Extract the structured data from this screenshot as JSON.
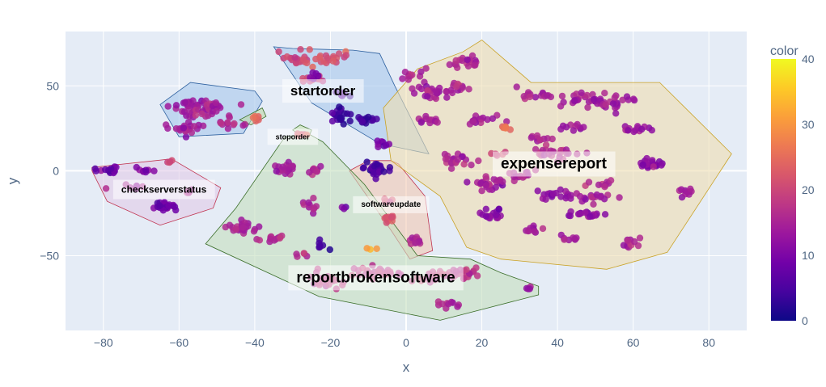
{
  "chart_data": {
    "type": "scatter",
    "xlabel": "x",
    "ylabel": "y",
    "xlim": [
      -90,
      90
    ],
    "ylim": [
      -94,
      82
    ],
    "x_ticks": [
      -80,
      -60,
      -40,
      -20,
      0,
      20,
      40,
      60,
      80
    ],
    "y_ticks": [
      -50,
      0,
      50
    ],
    "x_tick_labels": [
      "−80",
      "−60",
      "−40",
      "−20",
      "0",
      "20",
      "40",
      "60",
      "80"
    ],
    "y_tick_labels": [
      "−50",
      "0",
      "50"
    ],
    "grid": true,
    "colorbar": {
      "title": "color",
      "min": 0,
      "max": 40,
      "ticks": [
        0,
        10,
        20,
        30,
        40
      ],
      "scale": [
        "#0d0887",
        "#46039f",
        "#7201a8",
        "#9c179e",
        "#bd3786",
        "#d8576b",
        "#ed7953",
        "#fb9f3a",
        "#fdca26",
        "#f0f921"
      ]
    },
    "clusters": [
      {
        "name": "startorder",
        "label_size": 17,
        "label_pos": [
          -22,
          47
        ],
        "fill": "#a6c8ec",
        "stroke": "#2c5f9e",
        "hull": [
          [
            -35,
            73
          ],
          [
            -30,
            72
          ],
          [
            -14,
            71
          ],
          [
            -7,
            69
          ],
          [
            -3,
            50
          ],
          [
            6,
            10
          ],
          [
            -7,
            16
          ],
          [
            -25,
            40
          ]
        ],
        "clusters": [
          {
            "cx": -28,
            "cy": 66,
            "sx": 5,
            "sy": 4,
            "n": 24,
            "c": 20
          },
          {
            "cx": -20,
            "cy": 66,
            "sx": 4,
            "sy": 4,
            "n": 16,
            "c": 22
          },
          {
            "cx": -25,
            "cy": 54,
            "sx": 3,
            "sy": 2,
            "n": 10,
            "c": 19
          },
          {
            "cx": -18,
            "cy": 32,
            "sx": 3,
            "sy": 4,
            "n": 22,
            "c": 4
          },
          {
            "cx": -11,
            "cy": 30,
            "sx": 3,
            "sy": 2,
            "n": 14,
            "c": 4
          },
          {
            "cx": -17,
            "cy": 45,
            "sx": 2,
            "sy": 2,
            "n": 6,
            "c": 5
          },
          {
            "cx": -6,
            "cy": 16,
            "sx": 3,
            "sy": 2,
            "n": 8,
            "c": 10
          },
          {
            "cx": -24,
            "cy": 56,
            "sx": 2,
            "sy": 2,
            "n": 5,
            "c": 10
          }
        ]
      },
      {
        "name": "",
        "label_size": 0,
        "label_pos": [
          0,
          0
        ],
        "fill": "#a6c8ec",
        "stroke": "#2c5f9e",
        "hull": [
          [
            -65,
            39
          ],
          [
            -57,
            52
          ],
          [
            -40,
            47
          ],
          [
            -38,
            41
          ],
          [
            -43,
            22
          ],
          [
            -60,
            20
          ]
        ],
        "clusters": [
          {
            "cx": -57,
            "cy": 37,
            "sx": 4,
            "sy": 4,
            "n": 30,
            "c": 14
          },
          {
            "cx": -51,
            "cy": 37,
            "sx": 4,
            "sy": 4,
            "n": 28,
            "c": 15
          },
          {
            "cx": -58,
            "cy": 25,
            "sx": 4,
            "sy": 2,
            "n": 20,
            "c": 14
          },
          {
            "cx": -46,
            "cy": 28,
            "sx": 3,
            "sy": 2,
            "n": 10,
            "c": 16
          }
        ]
      },
      {
        "name": "",
        "label_size": 0,
        "label_pos": [
          0,
          0
        ],
        "fill": "#bcd9a8",
        "stroke": "#3b6e2a",
        "hull": [
          [
            -44,
            30
          ],
          [
            -38,
            37
          ],
          [
            -37,
            32
          ],
          [
            -41,
            27
          ]
        ],
        "clusters": [
          {
            "cx": -40,
            "cy": 31,
            "sx": 1.5,
            "sy": 1.5,
            "n": 6,
            "c": 24
          }
        ]
      },
      {
        "name": "stoporder",
        "label_size": 9,
        "label_pos": [
          -30,
          20
        ],
        "fill": "#c5e3ad",
        "stroke": "#3b6e2a",
        "hull": [
          [
            -30,
            24
          ],
          [
            -28,
            27
          ],
          [
            -25,
            24
          ],
          [
            -26,
            18
          ]
        ],
        "clusters": [
          {
            "cx": -28,
            "cy": 22,
            "sx": 1.5,
            "sy": 1.5,
            "n": 6,
            "c": 22
          }
        ]
      },
      {
        "name": "checkserverstatus",
        "label_size": 12,
        "label_pos": [
          -64,
          -11
        ],
        "fill": "#e1cbe8",
        "stroke": "#c0334f",
        "hull": [
          [
            -83,
            0
          ],
          [
            -83,
            2
          ],
          [
            -62,
            7
          ],
          [
            -49,
            -10
          ],
          [
            -51,
            -22
          ],
          [
            -65,
            -32
          ],
          [
            -79,
            -18
          ]
        ],
        "clusters": [
          {
            "cx": -78,
            "cy": 0,
            "sx": 3,
            "sy": 2,
            "n": 18,
            "c": 8
          },
          {
            "cx": -69,
            "cy": 0,
            "sx": 2,
            "sy": 1.5,
            "n": 8,
            "c": 10
          },
          {
            "cx": -64,
            "cy": -21,
            "sx": 3,
            "sy": 2,
            "n": 24,
            "c": 9
          },
          {
            "cx": -62,
            "cy": 5,
            "sx": 1.5,
            "sy": 1,
            "n": 4,
            "c": 20
          },
          {
            "cx": -72,
            "cy": -10,
            "sx": 3,
            "sy": 2,
            "n": 8,
            "c": 14
          },
          {
            "cx": -58,
            "cy": -12,
            "sx": 2,
            "sy": 2,
            "n": 5,
            "c": 16
          }
        ]
      },
      {
        "name": "softwareupdate",
        "label_size": 10,
        "label_pos": [
          -4,
          -20
        ],
        "fill": "#f0c8b3",
        "stroke": "#c0334f",
        "hull": [
          [
            -15,
            0
          ],
          [
            -10,
            6
          ],
          [
            -4,
            6
          ],
          [
            -2,
            4
          ],
          [
            5,
            -15
          ],
          [
            7,
            -47
          ],
          [
            1,
            -52
          ],
          [
            -4,
            -35
          ]
        ],
        "clusters": [
          {
            "cx": -8,
            "cy": 1,
            "sx": 3,
            "sy": 3,
            "n": 30,
            "c": 5
          },
          {
            "cx": -4,
            "cy": -28,
            "sx": 2,
            "sy": 2,
            "n": 10,
            "c": 22
          },
          {
            "cx": 2,
            "cy": -41,
            "sx": 2,
            "sy": 2,
            "n": 12,
            "c": 16
          },
          {
            "cx": -5,
            "cy": -18,
            "sx": 2,
            "sy": 2,
            "n": 6,
            "c": 20
          }
        ]
      },
      {
        "name": "reportbrokensoftware",
        "label_size": 19,
        "label_pos": [
          -8,
          -63
        ],
        "fill": "#c5dfbe",
        "stroke": "#3b6e2a",
        "hull": [
          [
            -32,
            20
          ],
          [
            -26,
            22
          ],
          [
            -22,
            17
          ],
          [
            -11,
            -8
          ],
          [
            3,
            -50
          ],
          [
            17,
            -52
          ],
          [
            25,
            -60
          ],
          [
            35,
            -68
          ],
          [
            35,
            -73
          ],
          [
            9,
            -88
          ],
          [
            -23,
            -74
          ],
          [
            -53,
            -43
          ],
          [
            -45,
            -22
          ]
        ],
        "clusters": [
          {
            "cx": -32,
            "cy": 1,
            "sx": 3,
            "sy": 3,
            "n": 22,
            "c": 14
          },
          {
            "cx": -24,
            "cy": 0,
            "sx": 2,
            "sy": 2,
            "n": 10,
            "c": 16
          },
          {
            "cx": -43,
            "cy": -33,
            "sx": 3,
            "sy": 3,
            "n": 24,
            "c": 15
          },
          {
            "cx": -35,
            "cy": -40,
            "sx": 3,
            "sy": 2,
            "n": 12,
            "c": 16
          },
          {
            "cx": -25,
            "cy": -21,
            "sx": 2,
            "sy": 3,
            "n": 10,
            "c": 15
          },
          {
            "cx": -22,
            "cy": -44,
            "sx": 1.5,
            "sy": 2,
            "n": 7,
            "c": 3
          },
          {
            "cx": -28,
            "cy": -50,
            "sx": 2,
            "sy": 2,
            "n": 5,
            "c": 17
          },
          {
            "cx": -20,
            "cy": -64,
            "sx": 4,
            "sy": 4,
            "n": 20,
            "c": 18
          },
          {
            "cx": -8,
            "cy": -60,
            "sx": 5,
            "sy": 3,
            "n": 28,
            "c": 18
          },
          {
            "cx": 8,
            "cy": -62,
            "sx": 5,
            "sy": 3,
            "n": 24,
            "c": 18
          },
          {
            "cx": 16,
            "cy": -60,
            "sx": 4,
            "sy": 3,
            "n": 14,
            "c": 17
          },
          {
            "cx": 10,
            "cy": -79,
            "sx": 3,
            "sy": 2,
            "n": 10,
            "c": 15
          },
          {
            "cx": 33,
            "cy": -69,
            "sx": 1.5,
            "sy": 1,
            "n": 4,
            "c": 13
          },
          {
            "cx": -17,
            "cy": -22,
            "sx": 1.5,
            "sy": 1.5,
            "n": 3,
            "c": 10
          },
          {
            "cx": -8,
            "cy": -45,
            "sx": 1.5,
            "sy": 1,
            "n": 3,
            "c": 32
          }
        ]
      },
      {
        "name": "expensereport",
        "label_size": 19,
        "label_pos": [
          39,
          4
        ],
        "fill": "#eedeb0",
        "stroke": "#c9a227",
        "hull": [
          [
            3,
            60
          ],
          [
            15,
            70
          ],
          [
            20,
            77
          ],
          [
            33,
            52
          ],
          [
            67,
            52
          ],
          [
            86,
            10
          ],
          [
            69,
            -48
          ],
          [
            53,
            -58
          ],
          [
            25,
            -52
          ],
          [
            16,
            -45
          ],
          [
            9,
            -15
          ],
          [
            -4,
            6
          ],
          [
            -6,
            37
          ]
        ],
        "clusters": [
          {
            "cx": 2,
            "cy": 57,
            "sx": 3,
            "sy": 3,
            "n": 12,
            "c": 15
          },
          {
            "cx": 7,
            "cy": 46,
            "sx": 4,
            "sy": 4,
            "n": 24,
            "c": 14
          },
          {
            "cx": 6,
            "cy": 30,
            "sx": 3,
            "sy": 2,
            "n": 12,
            "c": 15
          },
          {
            "cx": 14,
            "cy": 49,
            "sx": 3,
            "sy": 3,
            "n": 12,
            "c": 16
          },
          {
            "cx": 15,
            "cy": 64,
            "sx": 4,
            "sy": 3,
            "n": 20,
            "c": 15
          },
          {
            "cx": 20,
            "cy": 30,
            "sx": 4,
            "sy": 3,
            "n": 16,
            "c": 14
          },
          {
            "cx": 26,
            "cy": 25,
            "sx": 1.5,
            "sy": 1.5,
            "n": 6,
            "c": 26
          },
          {
            "cx": 34,
            "cy": 45,
            "sx": 4,
            "sy": 3,
            "n": 16,
            "c": 15
          },
          {
            "cx": 45,
            "cy": 42,
            "sx": 5,
            "sy": 4,
            "n": 24,
            "c": 14
          },
          {
            "cx": 55,
            "cy": 40,
            "sx": 4,
            "sy": 4,
            "n": 24,
            "c": 14
          },
          {
            "cx": 61,
            "cy": 25,
            "sx": 3,
            "sy": 3,
            "n": 14,
            "c": 13
          },
          {
            "cx": 65,
            "cy": 4,
            "sx": 3,
            "sy": 2,
            "n": 22,
            "c": 12
          },
          {
            "cx": 74,
            "cy": -13,
            "sx": 2,
            "sy": 2,
            "n": 10,
            "c": 14
          },
          {
            "cx": 13,
            "cy": 6,
            "sx": 4,
            "sy": 4,
            "n": 20,
            "c": 15
          },
          {
            "cx": 22,
            "cy": -7,
            "sx": 4,
            "sy": 4,
            "n": 24,
            "c": 14
          },
          {
            "cx": 30,
            "cy": -3,
            "sx": 3,
            "sy": 3,
            "n": 14,
            "c": 16
          },
          {
            "cx": 39,
            "cy": 11,
            "sx": 5,
            "sy": 3,
            "n": 24,
            "c": 17
          },
          {
            "cx": 43,
            "cy": 26,
            "sx": 3,
            "sy": 2,
            "n": 10,
            "c": 13
          },
          {
            "cx": 40,
            "cy": -14,
            "sx": 4,
            "sy": 3,
            "n": 18,
            "c": 12
          },
          {
            "cx": 50,
            "cy": -16,
            "sx": 4,
            "sy": 3,
            "n": 16,
            "c": 14
          },
          {
            "cx": 48,
            "cy": -26,
            "sx": 4,
            "sy": 2,
            "n": 18,
            "c": 12
          },
          {
            "cx": 23,
            "cy": -26,
            "sx": 3,
            "sy": 3,
            "n": 20,
            "c": 11
          },
          {
            "cx": 34,
            "cy": -35,
            "sx": 3,
            "sy": 2,
            "n": 10,
            "c": 14
          },
          {
            "cx": 43,
            "cy": -40,
            "sx": 3,
            "sy": 2,
            "n": 8,
            "c": 14
          },
          {
            "cx": 58,
            "cy": -43,
            "sx": 3,
            "sy": 3,
            "n": 12,
            "c": 15
          },
          {
            "cx": 52,
            "cy": -8,
            "sx": 3,
            "sy": 2,
            "n": 10,
            "c": 16
          },
          {
            "cx": 35,
            "cy": 18,
            "sx": 3,
            "sy": 2,
            "n": 10,
            "c": 15
          },
          {
            "cx": 25,
            "cy": 10,
            "sx": 2,
            "sy": 2,
            "n": 6,
            "c": 20
          }
        ]
      }
    ]
  }
}
